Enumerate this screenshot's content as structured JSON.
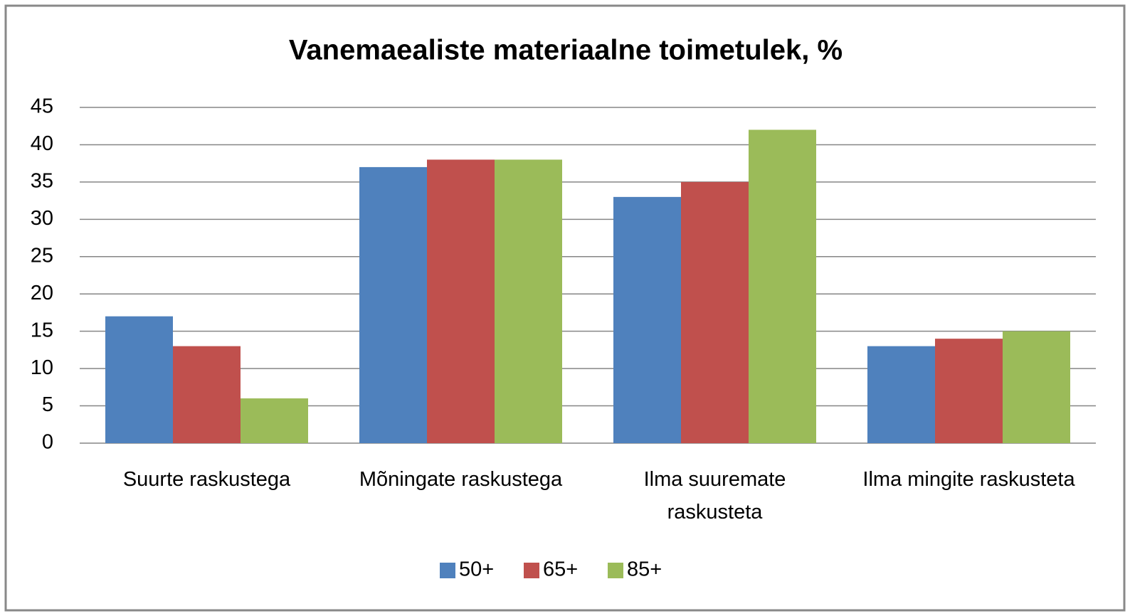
{
  "chart_data": {
    "type": "bar",
    "title": "Vanemaealiste materiaalne toimetulek, %",
    "categories": [
      "Suurte raskustega",
      "Mõningate raskustega",
      "Ilma suuremate raskusteta",
      "Ilma mingite raskusteta"
    ],
    "series": [
      {
        "name": "50+",
        "color": "#4f81bd",
        "values": [
          17,
          37,
          33,
          13
        ]
      },
      {
        "name": "65+",
        "color": "#c0504d",
        "values": [
          13,
          38,
          35,
          14
        ]
      },
      {
        "name": "85+",
        "color": "#9bbb59",
        "values": [
          6,
          38,
          42,
          15
        ]
      }
    ],
    "ylim": [
      0,
      45
    ],
    "yticks": [
      0,
      5,
      10,
      15,
      20,
      25,
      30,
      35,
      40,
      45
    ],
    "grid": true,
    "legend": "bottom"
  }
}
